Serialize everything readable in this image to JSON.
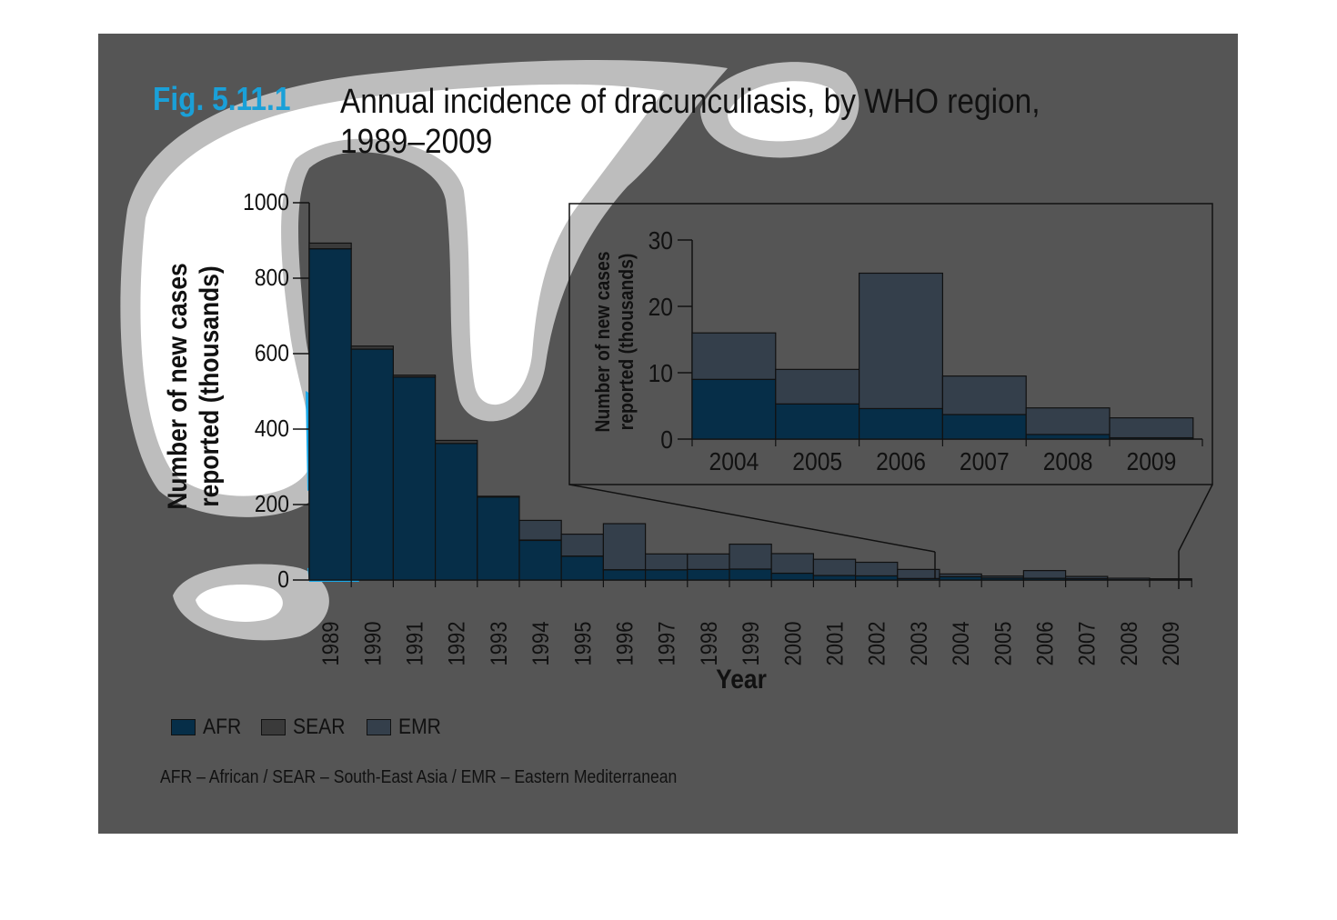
{
  "figure": {
    "number": "Fig. 5.11.1",
    "title_line1": "Annual incidence of dracunculiasis, by WHO region,",
    "title_line2": "1989–2009",
    "footnote": "AFR – African / SEAR – South-East Asia / EMR – Eastern Mediterranean"
  },
  "colors": {
    "panel": "#555555",
    "AFR": "#062e48",
    "SEAR": "#3a3a3a",
    "EMR": "#343f4b",
    "title_accent": "#1aa0d8"
  },
  "legend": [
    {
      "label": "AFR",
      "color": "#062e48"
    },
    {
      "label": "SEAR",
      "color": "#3a3a3a"
    },
    {
      "label": "EMR",
      "color": "#343f4b"
    }
  ],
  "chart_data": [
    {
      "type": "bar",
      "stacked": true,
      "categories": [
        "1989",
        "1990",
        "1991",
        "1992",
        "1993",
        "1994",
        "1995",
        "1996",
        "1997",
        "1998",
        "1999",
        "2000",
        "2001",
        "2002",
        "2003",
        "2004",
        "2005",
        "2006",
        "2007",
        "2008",
        "2009"
      ],
      "series": [
        {
          "name": "AFR",
          "values": [
            878,
            612,
            538,
            362,
            220,
            105,
            63,
            27,
            27,
            28,
            29,
            18,
            12,
            11,
            4,
            9,
            5.3,
            4.6,
            3.7,
            0.7,
            0.2
          ]
        },
        {
          "name": "SEAR",
          "values": [
            15,
            8,
            5,
            8,
            2,
            1,
            0.5,
            0.3,
            0.1,
            0,
            0,
            0,
            0,
            0,
            0,
            0,
            0,
            0,
            0,
            0,
            0
          ]
        },
        {
          "name": "EMR",
          "values": [
            0,
            0,
            0,
            0,
            0,
            52,
            58,
            122,
            42,
            41,
            66,
            52,
            43,
            36,
            24,
            7,
            5.2,
            20.4,
            5.8,
            4,
            3
          ]
        }
      ],
      "xlabel": "Year",
      "ylabel": "Number of new cases reported (thousands)",
      "ylabel_line1": "Number of new cases",
      "ylabel_line2": "reported (thousands)",
      "ylim": [
        0,
        1000
      ],
      "yticks": [
        0,
        200,
        400,
        600,
        800,
        1000
      ]
    },
    {
      "type": "bar",
      "stacked": true,
      "inset": true,
      "categories": [
        "2004",
        "2005",
        "2006",
        "2007",
        "2008",
        "2009"
      ],
      "series": [
        {
          "name": "AFR",
          "values": [
            9,
            5.3,
            4.6,
            3.7,
            0.7,
            0.2
          ]
        },
        {
          "name": "EMR",
          "values": [
            7,
            5.2,
            20.4,
            5.8,
            4,
            3
          ]
        }
      ],
      "ylabel_line1": "Number of new cases",
      "ylabel_line2": "reported (thousands)",
      "ylim": [
        0,
        30
      ],
      "yticks": [
        0,
        10,
        20,
        30
      ]
    }
  ]
}
